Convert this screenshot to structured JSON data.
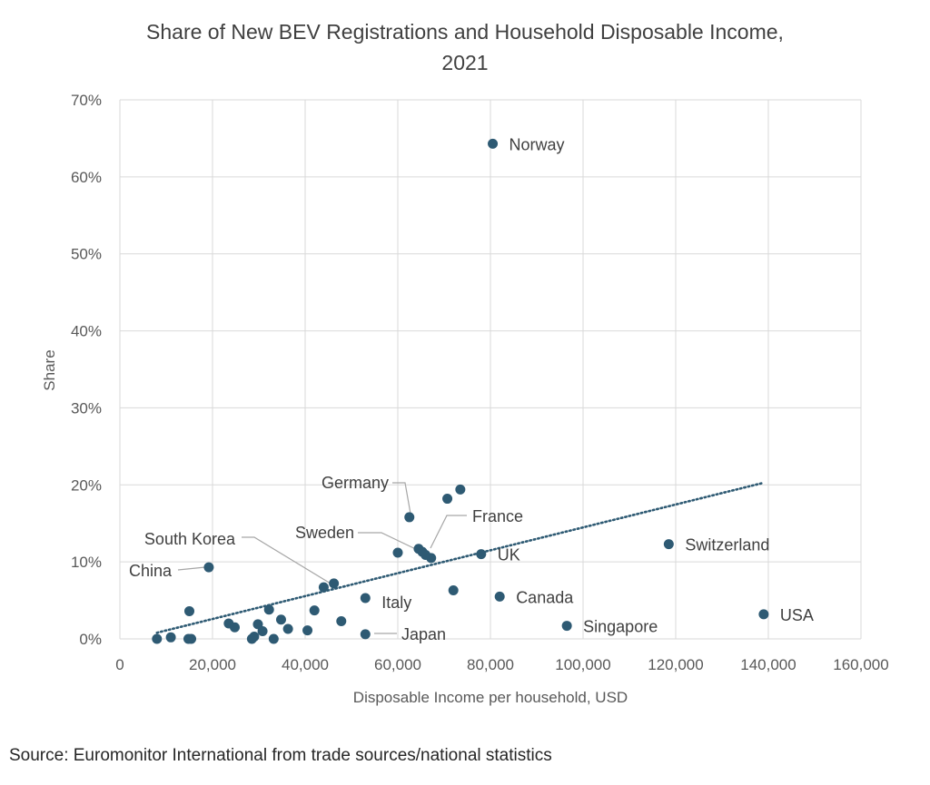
{
  "chart_data": {
    "type": "scatter",
    "title_line1": "Share of New BEV Registrations and Household Disposable Income,",
    "title_line2": "2021",
    "xlabel": "Disposable Income per household, USD",
    "ylabel": "Share",
    "xlim": [
      0,
      160000
    ],
    "ylim": [
      0,
      0.7
    ],
    "x_ticks": [
      "0",
      "20,000",
      "40,000",
      "60,000",
      "80,000",
      "100,000",
      "120,000",
      "140,000",
      "160,000"
    ],
    "y_ticks": [
      "0%",
      "10%",
      "20%",
      "30%",
      "40%",
      "50%",
      "60%",
      "70%"
    ],
    "grid": "vertical and horizontal",
    "marker_color": "#2e5a73",
    "trendline": {
      "style": "dotted linear",
      "color": "#2e5a73",
      "x": [
        8000,
        138500
      ],
      "y": [
        0.008,
        0.202
      ]
    },
    "points": [
      {
        "x": 80500,
        "y": 0.643,
        "label": "Norway"
      },
      {
        "x": 62500,
        "y": 0.158,
        "label": "Germany"
      },
      {
        "x": 70700,
        "y": 0.182,
        "label": ""
      },
      {
        "x": 73500,
        "y": 0.194,
        "label": ""
      },
      {
        "x": 66000,
        "y": 0.109,
        "label": "France"
      },
      {
        "x": 64500,
        "y": 0.117,
        "label": "Sweden"
      },
      {
        "x": 65300,
        "y": 0.113,
        "label": ""
      },
      {
        "x": 67200,
        "y": 0.105,
        "label": ""
      },
      {
        "x": 60000,
        "y": 0.112,
        "label": ""
      },
      {
        "x": 78000,
        "y": 0.11,
        "label": "UK"
      },
      {
        "x": 118500,
        "y": 0.123,
        "label": "Switzerland"
      },
      {
        "x": 19200,
        "y": 0.093,
        "label": "China"
      },
      {
        "x": 46200,
        "y": 0.072,
        "label": "South Korea"
      },
      {
        "x": 44000,
        "y": 0.067,
        "label": ""
      },
      {
        "x": 53000,
        "y": 0.053,
        "label": "Italy"
      },
      {
        "x": 72000,
        "y": 0.063,
        "label": ""
      },
      {
        "x": 82000,
        "y": 0.055,
        "label": "Canada"
      },
      {
        "x": 96500,
        "y": 0.017,
        "label": "Singapore"
      },
      {
        "x": 139000,
        "y": 0.032,
        "label": "USA"
      },
      {
        "x": 53000,
        "y": 0.006,
        "label": "Japan"
      },
      {
        "x": 15000,
        "y": 0.036,
        "label": ""
      },
      {
        "x": 8000,
        "y": 0.0,
        "label": ""
      },
      {
        "x": 11000,
        "y": 0.002,
        "label": ""
      },
      {
        "x": 14800,
        "y": 0.0,
        "label": ""
      },
      {
        "x": 15400,
        "y": 0.0,
        "label": ""
      },
      {
        "x": 23500,
        "y": 0.02,
        "label": ""
      },
      {
        "x": 24800,
        "y": 0.015,
        "label": ""
      },
      {
        "x": 28500,
        "y": 0.0,
        "label": ""
      },
      {
        "x": 29000,
        "y": 0.003,
        "label": ""
      },
      {
        "x": 29800,
        "y": 0.019,
        "label": ""
      },
      {
        "x": 30800,
        "y": 0.01,
        "label": ""
      },
      {
        "x": 32200,
        "y": 0.038,
        "label": ""
      },
      {
        "x": 33200,
        "y": 0.0,
        "label": ""
      },
      {
        "x": 34800,
        "y": 0.025,
        "label": ""
      },
      {
        "x": 36300,
        "y": 0.013,
        "label": ""
      },
      {
        "x": 40500,
        "y": 0.011,
        "label": ""
      },
      {
        "x": 42000,
        "y": 0.037,
        "label": ""
      },
      {
        "x": 47800,
        "y": 0.023,
        "label": ""
      }
    ]
  },
  "source_note": "Source: Euromonitor International from trade sources/national statistics"
}
